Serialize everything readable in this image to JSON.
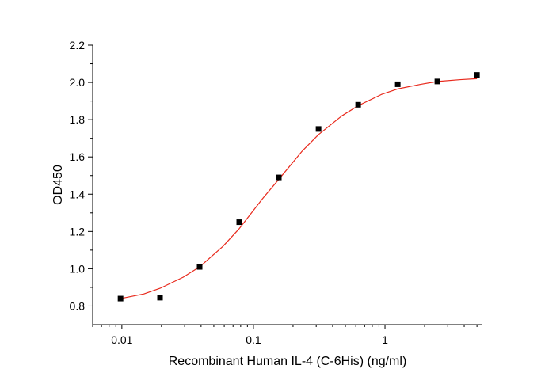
{
  "chart_data": {
    "type": "scatter",
    "title": "",
    "xlabel": "Recombinant Human IL-4 (C-6His) (ng/ml)",
    "ylabel": "OD450",
    "x_scale": "log",
    "xlim": [
      0.006,
      5.5
    ],
    "ylim": [
      0.7,
      2.2
    ],
    "x_ticks": [
      {
        "value": 0.01,
        "label": "0.01"
      },
      {
        "value": 0.1,
        "label": "0.1"
      },
      {
        "value": 1,
        "label": "1"
      }
    ],
    "y_ticks": [
      {
        "value": 0.8,
        "label": "0.8"
      },
      {
        "value": 1.0,
        "label": "1.0"
      },
      {
        "value": 1.2,
        "label": "1.2"
      },
      {
        "value": 1.4,
        "label": "1.4"
      },
      {
        "value": 1.6,
        "label": "1.6"
      },
      {
        "value": 1.8,
        "label": "1.8"
      },
      {
        "value": 2.0,
        "label": "2.0"
      },
      {
        "value": 2.2,
        "label": "2.2"
      }
    ],
    "grid": false,
    "legend": "none",
    "series": [
      {
        "kind": "points",
        "marker": "square",
        "color": "#000000",
        "x": [
          0.00977,
          0.0195,
          0.039,
          0.078,
          0.156,
          0.3125,
          0.625,
          1.25,
          2.5,
          5.0
        ],
        "y": [
          0.84,
          0.845,
          1.01,
          1.25,
          1.49,
          1.75,
          1.88,
          1.99,
          2.005,
          2.04
        ]
      },
      {
        "kind": "fit-curve",
        "color": "#e8291c",
        "x": [
          0.00977,
          0.0147,
          0.0195,
          0.0293,
          0.039,
          0.0586,
          0.078,
          0.117,
          0.156,
          0.234,
          0.3125,
          0.469,
          0.625,
          0.9375,
          1.25,
          1.875,
          2.5,
          3.75,
          5.0
        ],
        "y": [
          0.84,
          0.865,
          0.895,
          0.955,
          1.01,
          1.12,
          1.215,
          1.375,
          1.48,
          1.63,
          1.72,
          1.82,
          1.875,
          1.935,
          1.965,
          1.99,
          2.005,
          2.015,
          2.02
        ]
      }
    ]
  }
}
